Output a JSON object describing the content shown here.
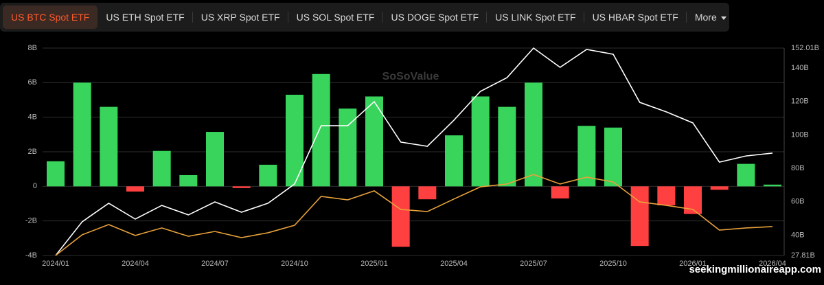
{
  "tabs": {
    "items": [
      "US BTC Spot ETF",
      "US ETH Spot ETF",
      "US XRP Spot ETF",
      "US SOL Spot ETF",
      "US DOGE Spot ETF",
      "US LINK Spot ETF",
      "US HBAR Spot ETF",
      "More"
    ],
    "active": 0
  },
  "watermark": "SoSoValue",
  "credit": "seekingmillionaireapp.com",
  "chart_data": {
    "type": "bar",
    "categories": [
      "2024/01",
      null,
      null,
      "2024/04",
      null,
      null,
      "2024/07",
      null,
      null,
      "2024/10",
      null,
      null,
      "2025/01",
      null,
      null,
      "2025/04",
      null,
      null,
      "2025/07",
      null,
      null,
      "2025/10",
      null,
      null,
      "2026/01",
      null,
      null,
      "2026/04"
    ],
    "series": [
      {
        "type": "bar",
        "color": "#38d45c",
        "negative_color": "#ff4040",
        "values": [
          1.45,
          6.0,
          4.6,
          -0.3,
          2.05,
          0.65,
          3.15,
          -0.1,
          1.25,
          5.3,
          6.5,
          4.5,
          5.2,
          -3.5,
          -0.75,
          2.95,
          5.2,
          4.6,
          6.0,
          -0.7,
          3.5,
          3.4,
          -3.45,
          -1.1,
          -1.6,
          -0.2,
          1.3,
          0.1
        ]
      },
      {
        "type": "line",
        "axis": "y2",
        "color": "#ffffff",
        "values": [
          27.81,
          48.0,
          59.1,
          49.6,
          57.8,
          52.1,
          59.9,
          53.7,
          59.1,
          70.6,
          105.5,
          105.5,
          119.9,
          95.7,
          93.2,
          108.8,
          126.1,
          134.3,
          152.0,
          140.5,
          151.2,
          148.3,
          119.5,
          113.8,
          107.2,
          83.7,
          87.4,
          89.1
        ]
      },
      {
        "type": "line",
        "axis": "y2",
        "color": "#e8a23a",
        "values": [
          27.81,
          40.2,
          46.3,
          39.8,
          44.3,
          39.3,
          42.2,
          38.5,
          41.4,
          45.9,
          63.2,
          61.1,
          66.5,
          55.4,
          54.1,
          61.6,
          68.9,
          70.6,
          76.3,
          70.6,
          74.7,
          71.8,
          59.9,
          57.8,
          55.4,
          43.0,
          44.3,
          45.1
        ]
      }
    ],
    "ylim": [
      -4,
      8
    ],
    "yticks": [
      {
        "value": -4,
        "label": "-4B"
      },
      {
        "value": -2,
        "label": "-2B"
      },
      0,
      {
        "value": 2,
        "label": "2B"
      },
      {
        "value": 4,
        "label": "4B"
      },
      {
        "value": 6,
        "label": "6B"
      },
      {
        "value": 8,
        "label": "8B"
      }
    ],
    "y2lim": [
      27.81,
      152.01
    ],
    "y2ticks": [
      {
        "value": 27.81,
        "label": "27.81B"
      },
      {
        "value": 40,
        "label": "40B"
      },
      {
        "value": 60,
        "label": "60B"
      },
      {
        "value": 80,
        "label": "80B"
      },
      {
        "value": 100,
        "label": "100B"
      },
      {
        "value": 120,
        "label": "120B"
      },
      {
        "value": 140,
        "label": "140B"
      },
      {
        "value": 152.01,
        "label": "152.01B"
      }
    ],
    "grid": true
  }
}
